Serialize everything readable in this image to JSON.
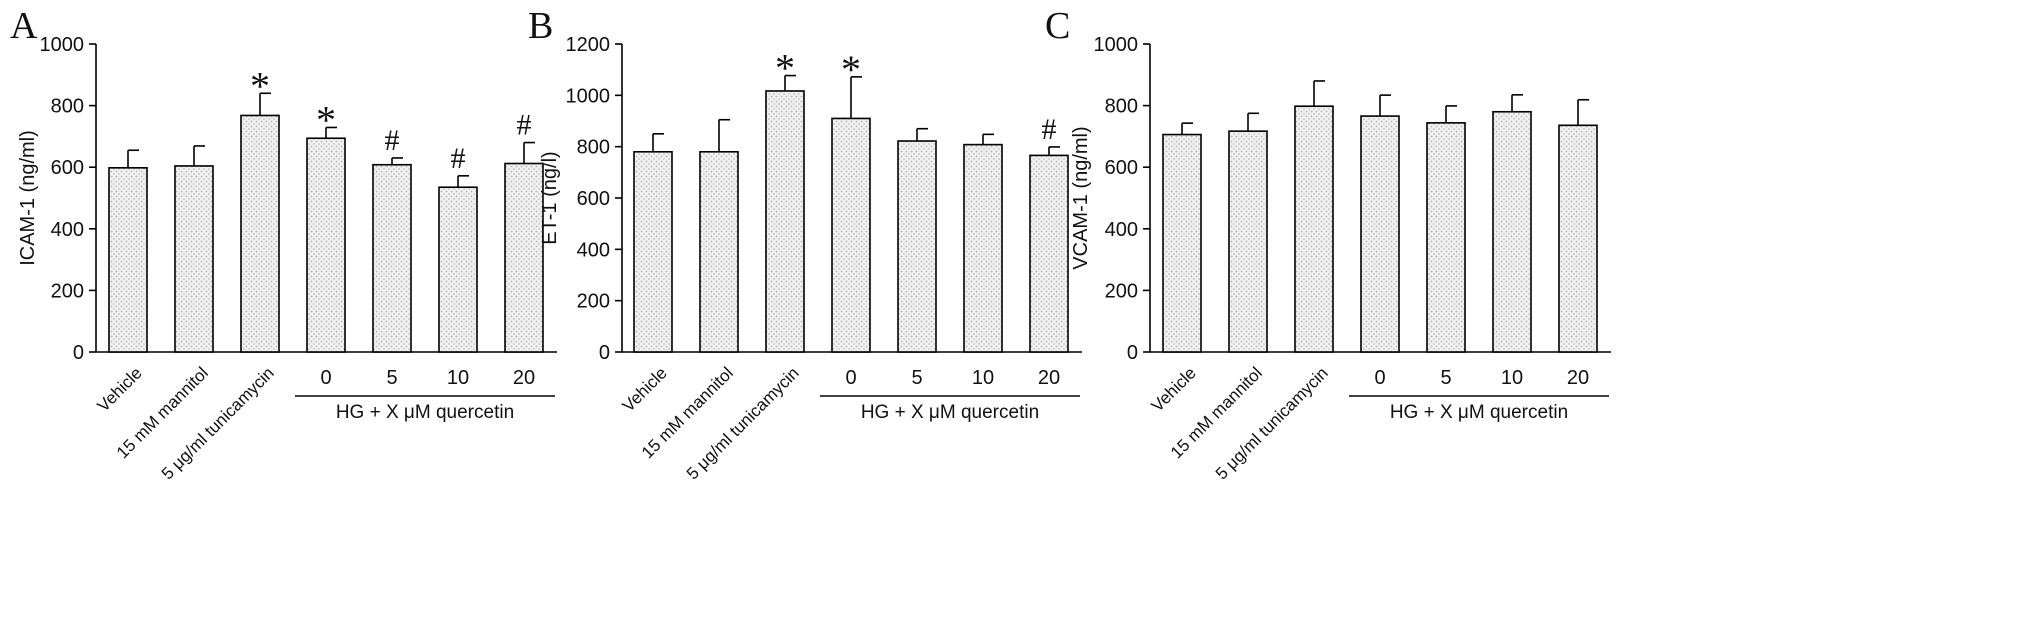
{
  "chart_data": [
    {
      "panel": "A",
      "type": "bar",
      "ylabel": "ICAM-1 (ng/ml)",
      "ylim": [
        0,
        1000
      ],
      "yticks": [
        0,
        200,
        400,
        600,
        800,
        1000
      ],
      "categories": [
        "Vehicle",
        "15 mM mannitol",
        "5 μg/ml tunicamycin",
        "0",
        "5",
        "10",
        "20"
      ],
      "values": [
        598,
        604,
        768,
        694,
        608,
        535,
        612
      ],
      "errors": [
        57,
        65,
        72,
        35,
        22,
        37,
        68
      ],
      "significance": [
        "",
        "",
        "*",
        "*",
        "#",
        "#",
        "#"
      ],
      "group_label": "HG + X μM quercetin"
    },
    {
      "panel": "B",
      "type": "bar",
      "ylabel": "ET-1 (ng/l)",
      "ylim": [
        0,
        1200
      ],
      "yticks": [
        0,
        200,
        400,
        600,
        800,
        1000,
        1200
      ],
      "categories": [
        "Vehicle",
        "15 mM mannitol",
        "5 μg/ml tunicamycin",
        "0",
        "5",
        "10",
        "20"
      ],
      "values": [
        780,
        780,
        1017,
        910,
        822,
        808,
        766
      ],
      "errors": [
        70,
        125,
        60,
        162,
        48,
        40,
        33
      ],
      "significance": [
        "",
        "",
        "*",
        "*",
        "",
        "",
        "#"
      ],
      "group_label": "HG + X μM quercetin"
    },
    {
      "panel": "C",
      "type": "bar",
      "ylabel": "VCAM-1 (ng/ml)",
      "ylim": [
        0,
        1000
      ],
      "yticks": [
        0,
        200,
        400,
        600,
        800,
        1000
      ],
      "categories": [
        "Vehicle",
        "15 mM mannitol",
        "5 μg/ml tunicamycin",
        "0",
        "5",
        "10",
        "20"
      ],
      "values": [
        706,
        717,
        798,
        766,
        744,
        780,
        736
      ],
      "errors": [
        37,
        58,
        82,
        68,
        55,
        55,
        83
      ],
      "significance": [
        "",
        "",
        "",
        "",
        "",
        "",
        ""
      ],
      "group_label": "HG + X μM quercetin"
    }
  ]
}
